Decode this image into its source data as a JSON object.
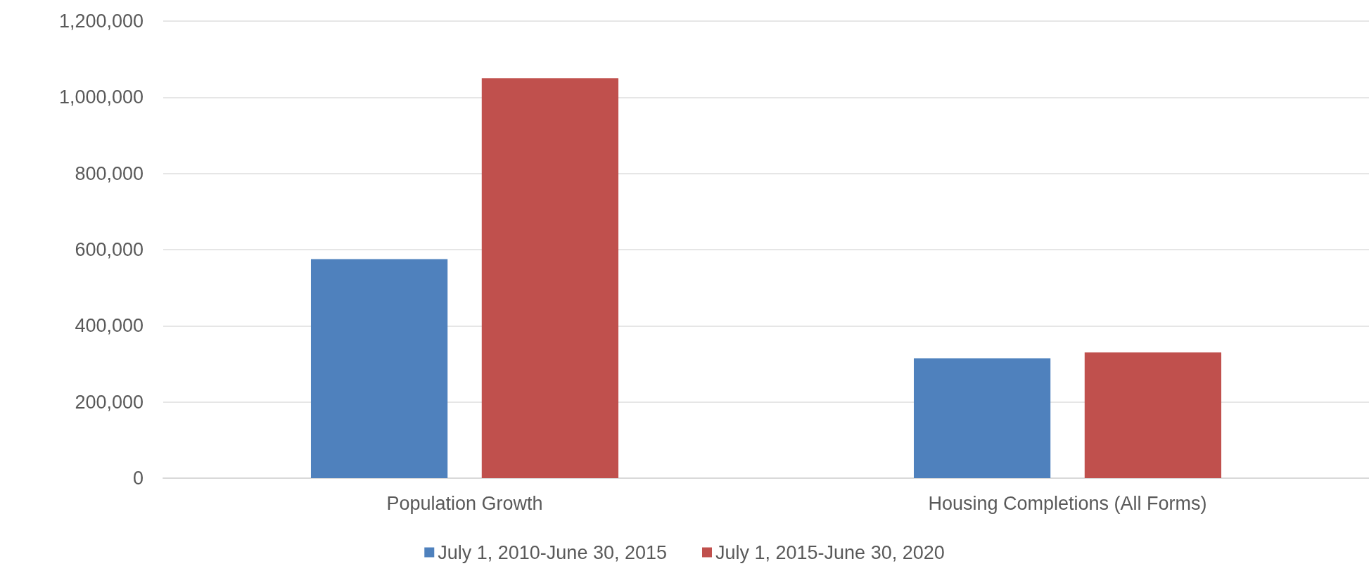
{
  "chart_data": {
    "type": "bar",
    "categories": [
      "Population Growth",
      "Housing Completions (All Forms)"
    ],
    "series": [
      {
        "name": "July 1, 2010-June 30, 2015",
        "color": "#4f81bd",
        "values": [
          575000,
          315000
        ]
      },
      {
        "name": "July 1, 2015-June 30, 2020",
        "color": "#c0504d",
        "values": [
          1050000,
          330000
        ]
      }
    ],
    "ylim": [
      0,
      1200000
    ],
    "yticks": [
      0,
      {
        "value": 200000,
        "label": "200,000"
      },
      {
        "value": 400000,
        "label": "400,000"
      },
      {
        "value": 600000,
        "label": "600,000"
      },
      {
        "value": 800000,
        "label": "800,000"
      },
      {
        "value": 1000000,
        "label": "1,000,000"
      },
      {
        "value": 1200000,
        "label": "1,200,000"
      }
    ],
    "grid": "y",
    "legend": "bottom"
  }
}
